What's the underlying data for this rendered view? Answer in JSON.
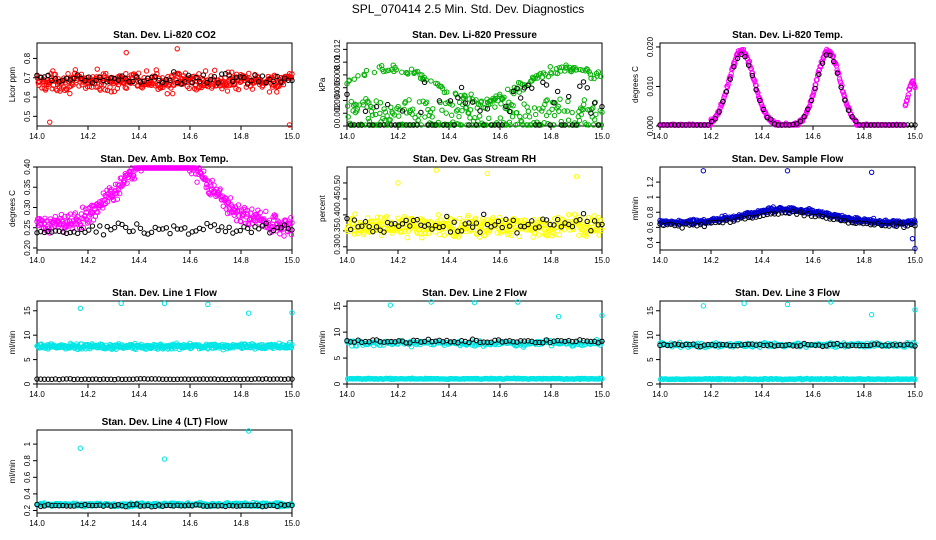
{
  "figure_title": "SPL_070414  2.5 Min. Std. Dev. Diagnostics",
  "chart_data": [
    {
      "type": "scatter",
      "title": "Stan. Dev. Li-820 CO2",
      "ylabel": "Licor ppm",
      "xlim": [
        14.0,
        15.0
      ],
      "ylim": [
        0.45,
        0.88
      ],
      "x_ticks": [
        "14.0",
        "14.2",
        "14.4",
        "14.6",
        "14.8",
        "15.0"
      ],
      "y_ticks": [
        0.5,
        0.6,
        0.7,
        0.8
      ],
      "colors": {
        "main": "#ff0000",
        "sub": "#000000"
      },
      "series": [
        {
          "role": "main",
          "color": "#ff0000",
          "pattern": "band",
          "center": 0.68,
          "spread": 0.07,
          "outliers": [
            [
              14.05,
              0.47
            ],
            [
              14.55,
              0.85
            ],
            [
              14.99,
              0.45
            ],
            [
              14.35,
              0.83
            ]
          ]
        },
        {
          "role": "sub",
          "color": "#000000",
          "pattern": "band",
          "center": 0.69,
          "spread": 0.05
        }
      ]
    },
    {
      "type": "scatter",
      "title": "Stan. Dev. Li-820 Pressure",
      "ylabel": "kPa",
      "xlim": [
        14.0,
        15.0
      ],
      "ylim": [
        0.0,
        0.013
      ],
      "x_ticks": [
        "14.0",
        "14.2",
        "14.4",
        "14.6",
        "14.8",
        "15.0"
      ],
      "y_ticks": [
        0.0,
        0.002,
        0.004,
        0.006,
        0.008,
        0.01,
        0.012
      ],
      "colors": {
        "main": "#00b000",
        "sub": "#000000"
      },
      "series": [
        {
          "role": "main",
          "color": "#00b000",
          "pattern": "pressure"
        },
        {
          "role": "sub",
          "color": "#000000",
          "pattern": "pressure_sub"
        }
      ]
    },
    {
      "type": "scatter",
      "title": "Stan. Dev. Li-820 Temp.",
      "ylabel": "degrees C",
      "xlim": [
        14.0,
        15.0
      ],
      "ylim": [
        0.0,
        0.021
      ],
      "x_ticks": [
        "14.0",
        "14.2",
        "14.4",
        "14.6",
        "14.8",
        "15.0"
      ],
      "y_ticks": [
        0.0,
        0.01,
        0.02
      ],
      "y_tick_labels": [
        "0.000",
        "0.010",
        "0.020"
      ],
      "colors": {
        "main": "#ff00ff",
        "sub": "#000000"
      },
      "series": [
        {
          "role": "main",
          "color": "#ff00ff",
          "pattern": "temp"
        },
        {
          "role": "sub",
          "color": "#000000",
          "pattern": "temp_sub"
        }
      ]
    },
    {
      "type": "scatter",
      "title": "Stan. Dev. Amb. Box Temp.",
      "ylabel": "degrees C",
      "xlim": [
        14.0,
        15.0
      ],
      "ylim": [
        0.195,
        0.4
      ],
      "x_ticks": [
        "14.0",
        "14.2",
        "14.4",
        "14.6",
        "14.8",
        "15.0"
      ],
      "y_ticks": [
        0.2,
        0.25,
        0.3,
        0.35,
        0.4
      ],
      "y_tick_labels": [
        "0.20",
        "0.25",
        "0.30",
        "0.35",
        "0.40"
      ],
      "colors": {
        "main": "#ff00ff",
        "sub": "#000000"
      },
      "series": [
        {
          "role": "main",
          "color": "#ff00ff",
          "pattern": "hump",
          "base": 0.255,
          "peak": 0.31,
          "spread": 0.035
        },
        {
          "role": "sub",
          "color": "#000000",
          "pattern": "band",
          "center": 0.245,
          "spread": 0.02
        }
      ]
    },
    {
      "type": "scatter",
      "title": "Stan. Dev. Gas Stream RH",
      "ylabel": "percent",
      "xlim": [
        14.0,
        15.0
      ],
      "ylim": [
        0.29,
        0.55
      ],
      "x_ticks": [
        "14.0",
        "14.2",
        "14.4",
        "14.6",
        "14.8",
        "15.0"
      ],
      "y_ticks": [
        0.3,
        0.35,
        0.4,
        0.45,
        0.5
      ],
      "y_tick_labels": [
        "0.30",
        "0.35",
        "0.40",
        "0.45",
        "0.50"
      ],
      "colors": {
        "main": "#ffff00",
        "sub": "#000000"
      },
      "series": [
        {
          "role": "main",
          "color": "#ffff00",
          "pattern": "band",
          "center": 0.365,
          "spread": 0.045,
          "outliers": [
            [
              14.35,
              0.54
            ],
            [
              14.55,
              0.53
            ],
            [
              14.9,
              0.52
            ],
            [
              14.2,
              0.5
            ]
          ]
        },
        {
          "role": "sub",
          "color": "#000000",
          "pattern": "band",
          "center": 0.37,
          "spread": 0.04
        }
      ]
    },
    {
      "type": "scatter",
      "title": "Stan. Dev. Sample Flow",
      "ylabel": "ml/min",
      "xlim": [
        14.0,
        15.0
      ],
      "ylim": [
        0.3,
        1.4
      ],
      "x_ticks": [
        "14.0",
        "14.2",
        "14.4",
        "14.6",
        "14.8",
        "15.0"
      ],
      "y_ticks": [
        0.4,
        0.6,
        0.8,
        1.0,
        1.2
      ],
      "colors": {
        "main": "#0000cc",
        "sub": "#000000"
      },
      "series": [
        {
          "role": "main",
          "color": "#0000cc",
          "pattern": "hump",
          "base": 0.66,
          "peak": 0.3,
          "spread": 0.05,
          "outliers": [
            [
              14.17,
              1.35
            ],
            [
              14.5,
              1.35
            ],
            [
              14.83,
              1.33
            ],
            [
              15.0,
              0.32
            ],
            [
              14.99,
              0.45
            ]
          ]
        },
        {
          "role": "sub",
          "color": "#000000",
          "pattern": "hump",
          "base": 0.62,
          "peak": 0.28,
          "spread": 0.04
        }
      ]
    },
    {
      "type": "scatter",
      "title": "Stan. Dev. Line 1 Flow",
      "ylabel": "ml/min",
      "xlim": [
        14.0,
        15.0
      ],
      "ylim": [
        0.0,
        17.0
      ],
      "x_ticks": [
        "14.0",
        "14.2",
        "14.4",
        "14.6",
        "14.8",
        "15.0"
      ],
      "y_ticks": [
        0,
        5,
        10,
        15
      ],
      "colors": {
        "main": "#00e5e5",
        "sub": "#000000"
      },
      "series": [
        {
          "role": "main",
          "color": "#00e5e5",
          "pattern": "band",
          "center": 7.7,
          "spread": 0.8,
          "outliers": [
            [
              14.17,
              15.5
            ],
            [
              14.33,
              16.5
            ],
            [
              14.5,
              16.5
            ],
            [
              14.67,
              16.3
            ],
            [
              14.83,
              14.5
            ],
            [
              15.0,
              14.6
            ]
          ]
        },
        {
          "role": "sub",
          "color": "#000000",
          "pattern": "line",
          "center": 1.0,
          "spread": 0.1
        }
      ]
    },
    {
      "type": "scatter",
      "title": "Stan. Dev. Line 2 Flow",
      "ylabel": "ml/min",
      "xlim": [
        14.0,
        15.0
      ],
      "ylim": [
        0.0,
        16.0
      ],
      "x_ticks": [
        "14.0",
        "14.2",
        "14.4",
        "14.6",
        "14.8",
        "15.0"
      ],
      "y_ticks": [
        0,
        5,
        10,
        15
      ],
      "colors": {
        "main": "#00e5e5",
        "sub": "#000000"
      },
      "series": [
        {
          "role": "main",
          "color": "#00e5e5",
          "pattern": "band2",
          "center": 7.9,
          "spread": 0.8,
          "low": 1.0,
          "outliers": [
            [
              14.17,
              15.2
            ],
            [
              14.33,
              16.0
            ],
            [
              14.5,
              15.7
            ],
            [
              14.67,
              15.8
            ],
            [
              14.83,
              13.0
            ],
            [
              15.0,
              13.2
            ]
          ]
        },
        {
          "role": "sub",
          "color": "#000000",
          "pattern": "line",
          "center": 8.2,
          "spread": 0.5
        }
      ]
    },
    {
      "type": "scatter",
      "title": "Stan. Dev. Line 3 Flow",
      "ylabel": "ml/min",
      "xlim": [
        14.0,
        15.0
      ],
      "ylim": [
        0.0,
        17.0
      ],
      "x_ticks": [
        "14.0",
        "14.2",
        "14.4",
        "14.6",
        "14.8",
        "15.0"
      ],
      "y_ticks": [
        0,
        5,
        10,
        15
      ],
      "colors": {
        "main": "#00e5e5",
        "sub": "#000000"
      },
      "series": [
        {
          "role": "main",
          "color": "#00e5e5",
          "pattern": "band2",
          "center": 8.0,
          "spread": 0.7,
          "low": 1.0,
          "outliers": [
            [
              14.17,
              16.0
            ],
            [
              14.33,
              16.5
            ],
            [
              14.5,
              16.3
            ],
            [
              14.67,
              16.8
            ],
            [
              14.83,
              14.2
            ],
            [
              15.0,
              15.2
            ]
          ]
        },
        {
          "role": "sub",
          "color": "#000000",
          "pattern": "line",
          "center": 8.0,
          "spread": 0.4
        }
      ]
    },
    {
      "type": "scatter",
      "title": "Stan. Dev. Line 4 (LT) Flow",
      "ylabel": "ml/min",
      "xlim": [
        14.0,
        15.0
      ],
      "ylim": [
        0.17,
        1.17
      ],
      "x_ticks": [
        "14.0",
        "14.2",
        "14.4",
        "14.6",
        "14.8",
        "15.0"
      ],
      "y_ticks": [
        0.2,
        0.4,
        0.6,
        0.8,
        1.0
      ],
      "colors": {
        "main": "#00e5e5",
        "sub": "#000000"
      },
      "series": [
        {
          "role": "main",
          "color": "#00e5e5",
          "pattern": "band",
          "center": 0.27,
          "spread": 0.03,
          "outliers": [
            [
              14.17,
              0.95
            ],
            [
              14.5,
              0.82
            ],
            [
              14.83,
              1.16
            ]
          ]
        },
        {
          "role": "sub",
          "color": "#000000",
          "pattern": "line",
          "center": 0.26,
          "spread": 0.02
        }
      ]
    }
  ]
}
